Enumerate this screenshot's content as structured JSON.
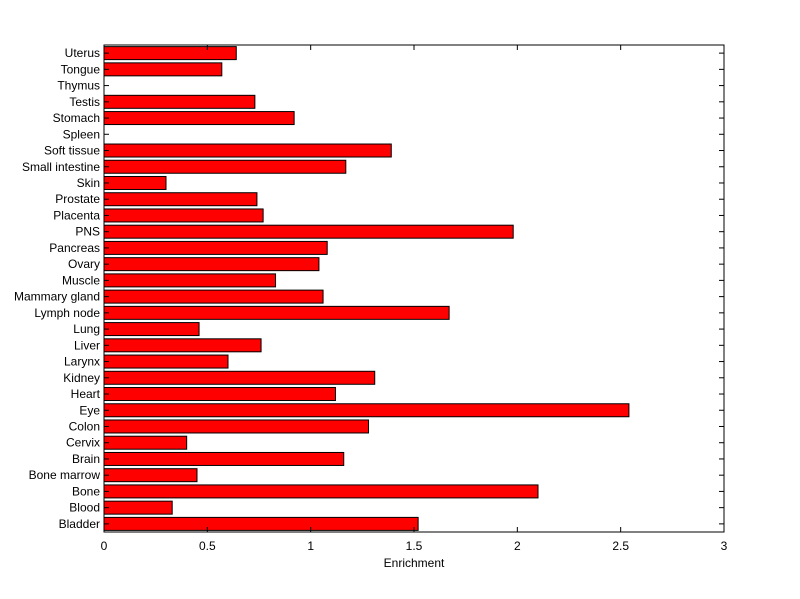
{
  "chart_data": {
    "type": "bar",
    "orientation": "horizontal",
    "categories": [
      "Uterus",
      "Tongue",
      "Thymus",
      "Testis",
      "Stomach",
      "Spleen",
      "Soft tissue",
      "Small intestine",
      "Skin",
      "Prostate",
      "Placenta",
      "PNS",
      "Pancreas",
      "Ovary",
      "Muscle",
      "Mammary gland",
      "Lymph node",
      "Lung",
      "Liver",
      "Larynx",
      "Kidney",
      "Heart",
      "Eye",
      "Colon",
      "Cervix",
      "Brain",
      "Bone marrow",
      "Bone",
      "Blood",
      "Bladder"
    ],
    "values": [
      0.64,
      0.57,
      0,
      0.73,
      0.92,
      0,
      1.39,
      1.17,
      0.3,
      0.74,
      0.77,
      1.98,
      1.08,
      1.04,
      0.83,
      1.06,
      1.67,
      0.46,
      0.76,
      0.6,
      1.31,
      1.12,
      2.54,
      1.28,
      0.4,
      1.16,
      0.45,
      2.1,
      0.33,
      1.52
    ],
    "xlabel": "Enrichment",
    "ylabel": "",
    "title": "",
    "xlim": [
      0,
      3
    ],
    "xticks": [
      "0",
      "0.5",
      "1",
      "1.5",
      "2",
      "2.5",
      "3"
    ],
    "grid": false,
    "bar_color": "#ff0000",
    "edge_color": "#000000"
  }
}
